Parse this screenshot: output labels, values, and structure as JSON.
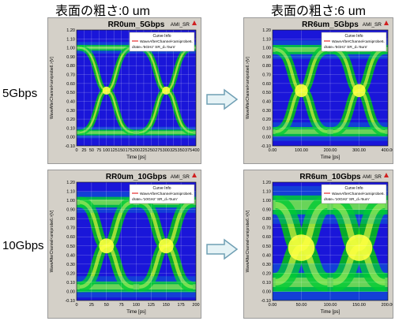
{
  "headers": {
    "left": "表面の粗さ:0 um",
    "right": "表面の粗さ:6 um"
  },
  "rows": [
    "5Gbps",
    "10Gbps"
  ],
  "colors": {
    "eye_peak": "#ffff40",
    "eye_mid": "#00d000",
    "eye_low": "#00bcd4",
    "background": "#1a16d9"
  },
  "chart_data": [
    {
      "type": "heatmap",
      "title": "RR0um_5Gbps",
      "corner_label": "AMI_SR",
      "ylabel": "WaveAfterChannel<amiprobe6.>[V]",
      "xlabel": "Time [ps]",
      "ylim": [
        -0.1,
        1.2
      ],
      "xlim": [
        0,
        400
      ],
      "yticks": [
        "1.20",
        "1.10",
        "1.00",
        "0.90",
        "0.80",
        "0.70",
        "0.60",
        "0.50",
        "0.40",
        "0.30",
        "0.20",
        "0.10",
        "0.00",
        "-0.10"
      ],
      "xticks": [
        "0",
        "25",
        "50",
        "75",
        "100",
        "125",
        "150",
        "175",
        "200",
        "225",
        "250",
        "275",
        "300",
        "325",
        "350",
        "375",
        "400"
      ],
      "legend": {
        "title": "Curve Info",
        "line1": "WaveAfterChannel<amiprobe6.",
        "line2": "drate='5GHz' SR_d='0um'"
      },
      "eye": {
        "high_level": 1.0,
        "low_level": 0.05,
        "crossings_ps": [
          100,
          300
        ],
        "crossing_level": 0.52,
        "thickness": 0.05
      }
    },
    {
      "type": "heatmap",
      "title": "RR6um_5Gbps",
      "corner_label": "AMI_SR",
      "ylabel": "WaveAfterChannel<amiprobe6.>[V]",
      "xlabel": "Time [ps]",
      "ylim": [
        -0.1,
        1.2
      ],
      "xlim": [
        0,
        400
      ],
      "yticks": [
        "1.20",
        "1.10",
        "1.00",
        "0.90",
        "0.80",
        "0.70",
        "0.60",
        "0.50",
        "0.40",
        "0.30",
        "0.20",
        "0.10",
        "0.00",
        "-0.10"
      ],
      "xticks": [
        "0.00",
        "100.00",
        "200.00",
        "300.00",
        "400.00"
      ],
      "legend": {
        "title": "Curve Info",
        "line1": "WaveAfterChannel<amiprobe6.",
        "line2": "drate='5GHz' SR_d='6um'"
      },
      "eye": {
        "high_level": 0.98,
        "low_level": 0.06,
        "crossings_ps": [
          100,
          300
        ],
        "crossing_level": 0.52,
        "thickness": 0.08
      }
    },
    {
      "type": "heatmap",
      "title": "RR0um_10Gbps",
      "corner_label": "AMI_SR",
      "ylabel": "WaveAfterChannel<amiprobe6.>[V]",
      "xlabel": "Time [ps]",
      "ylim": [
        -0.1,
        1.2
      ],
      "xlim": [
        0,
        200
      ],
      "yticks": [
        "1.20",
        "1.10",
        "1.00",
        "0.90",
        "0.80",
        "0.70",
        "0.60",
        "0.50",
        "0.40",
        "0.30",
        "0.20",
        "0.10",
        "0.00",
        "-0.10"
      ],
      "xticks": [
        "0",
        "25",
        "50",
        "75",
        "100",
        "125",
        "150",
        "175",
        "200"
      ],
      "legend": {
        "title": "Curve Info",
        "line1": "WaveAfterChannel<amiprobe6.",
        "line2": "drate='10GHz' SR_d='0um'"
      },
      "eye": {
        "high_level": 0.98,
        "low_level": 0.05,
        "crossings_ps": [
          50,
          150
        ],
        "crossing_level": 0.5,
        "thickness": 0.09
      }
    },
    {
      "type": "heatmap",
      "title": "RR6um_10Gbps",
      "corner_label": "AMI_SR",
      "ylabel": "WaveAfterChannel<amiprobe6.>[V]",
      "xlabel": "Time [ps]",
      "ylim": [
        -0.1,
        1.2
      ],
      "xlim": [
        0,
        200
      ],
      "yticks": [
        "1.20",
        "1.10",
        "1.00",
        "0.90",
        "0.80",
        "0.70",
        "0.60",
        "0.50",
        "0.40",
        "0.30",
        "0.20",
        "0.10",
        "0.00",
        "-0.10"
      ],
      "xticks": [
        "0.00",
        "50.00",
        "100.00",
        "150.00",
        "200.00"
      ],
      "legend": {
        "title": "Curve Info",
        "line1": "WaveAfterChannel<amiprobe6.",
        "line2": "drate='10GHz' SR_d='6um'"
      },
      "eye": {
        "high_level": 0.95,
        "low_level": 0.1,
        "crossings_ps": [
          50,
          150
        ],
        "crossing_level": 0.48,
        "thickness": 0.16
      }
    }
  ]
}
